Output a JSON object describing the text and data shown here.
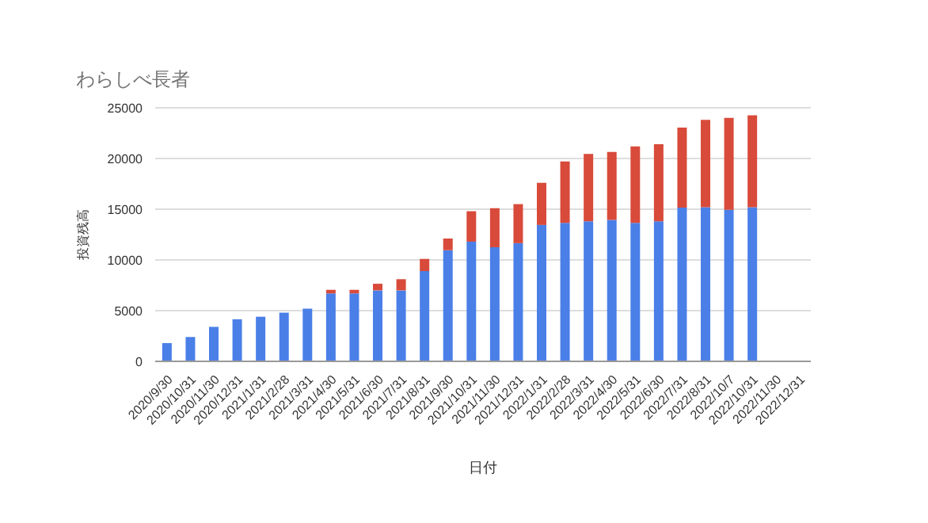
{
  "chart_data": {
    "type": "bar",
    "title": "わらしべ長者",
    "xlabel": "日付",
    "ylabel": "投資残高",
    "categories": [
      "2020/9/30",
      "2020/10/31",
      "2020/11/30",
      "2020/12/31",
      "2021/1/31",
      "2021/2/28",
      "2021/3/31",
      "2021/4/30",
      "2021/5/31",
      "2021/6/30",
      "2021/7/31",
      "2021/8/31",
      "2021/9/30",
      "2021/10/31",
      "2021/11/30",
      "2021/12/31",
      "2022/1/31",
      "2022/2/28",
      "2022/3/31",
      "2022/4/30",
      "2022/5/31",
      "2022/6/30",
      "2022/7/31",
      "2022/8/31",
      "2022/10/7",
      "2022/10/31",
      "2022/11/30",
      "2022/12/31"
    ],
    "series": [
      {
        "color": "#4a7fe8",
        "values": [
          1800,
          2400,
          3400,
          4150,
          4400,
          4800,
          5200,
          6700,
          6700,
          7000,
          7000,
          8900,
          10950,
          11800,
          11250,
          11650,
          13450,
          13650,
          13800,
          13950,
          13650,
          13800,
          15150,
          15200,
          14950,
          15200,
          null,
          null
        ]
      },
      {
        "color": "#d84a3a",
        "values": [
          null,
          null,
          null,
          null,
          null,
          null,
          null,
          350,
          350,
          650,
          1100,
          1200,
          1150,
          3000,
          3850,
          3850,
          4150,
          6050,
          6650,
          6700,
          7550,
          7600,
          7900,
          8600,
          9050,
          9050,
          null,
          null
        ]
      }
    ],
    "stacked": true,
    "ylim": [
      0,
      25000
    ],
    "yticks": [
      0,
      5000,
      10000,
      15000,
      20000,
      25000
    ],
    "grid": "y",
    "legend": false
  }
}
